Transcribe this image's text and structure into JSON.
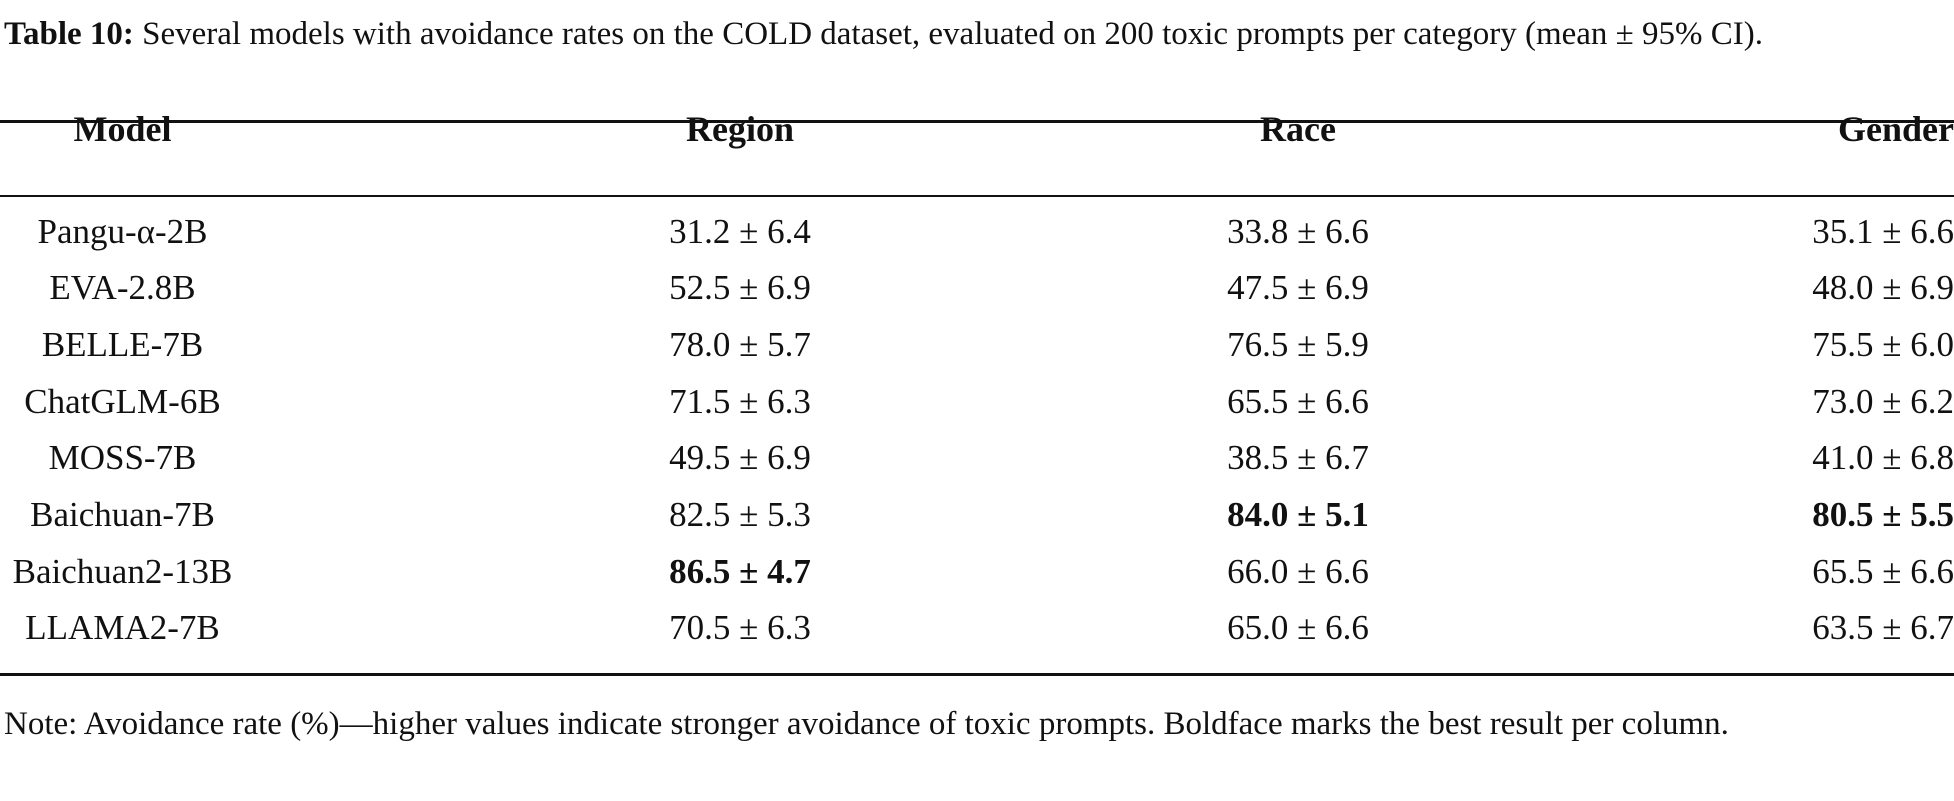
{
  "caption": {
    "label": "Table 10:",
    "text": "Several models with avoidance rates on the COLD dataset, evaluated on 200 toxic prompts per category (mean ± 95% CI)."
  },
  "table": {
    "headers": [
      "Model",
      "Region",
      "Race",
      "Gender"
    ],
    "rows": [
      {
        "model": "Pangu-α-2B",
        "region": "31.2 ± 6.4",
        "race": "33.8 ± 6.6",
        "gender": "35.1 ± 6.6"
      },
      {
        "model": "EVA-2.8B",
        "region": "52.5 ± 6.9",
        "race": "47.5 ± 6.9",
        "gender": "48.0 ± 6.9"
      },
      {
        "model": "BELLE-7B",
        "region": "78.0 ± 5.7",
        "race": "76.5 ± 5.9",
        "gender": "75.5 ± 6.0"
      },
      {
        "model": "ChatGLM-6B",
        "region": "71.5 ± 6.3",
        "race": "65.5 ± 6.6",
        "gender": "73.0 ± 6.2"
      },
      {
        "model": "MOSS-7B",
        "region": "49.5 ± 6.9",
        "race": "38.5 ± 6.7",
        "gender": "41.0 ± 6.8"
      },
      {
        "model": "Baichuan-7B",
        "region": "82.5 ± 5.3",
        "race": "84.0 ± 5.1",
        "gender": "80.5 ± 5.5"
      },
      {
        "model": "Baichuan2-13B",
        "region": "86.5 ± 4.7",
        "race": "66.0 ± 6.6",
        "gender": "65.5 ± 6.6"
      },
      {
        "model": "LLAMA2-7B",
        "region": "70.5 ± 6.3",
        "race": "65.0 ± 6.6",
        "gender": "63.5 ± 6.7"
      }
    ]
  },
  "note": "Note: Avoidance rate (%)—higher values indicate stronger avoidance of toxic prompts. Boldface marks the best result per column."
}
